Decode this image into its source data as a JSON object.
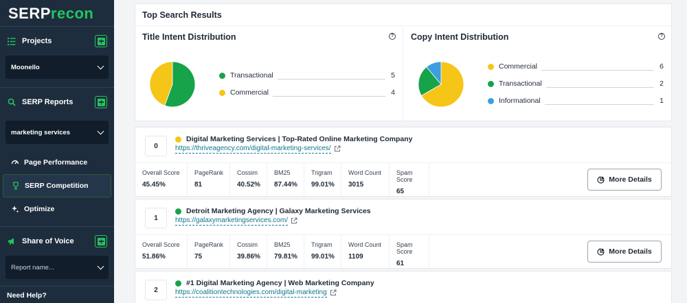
{
  "brand": {
    "serp": "SERP",
    "recon": "recon"
  },
  "sidebar": {
    "projects_label": "Projects",
    "project_selected": "Moonello",
    "serp_reports_label": "SERP Reports",
    "report_selected": "marketing services",
    "nav": [
      {
        "label": "Page Performance",
        "icon": "gauge-icon"
      },
      {
        "label": "SERP Competition",
        "icon": "trophy-icon"
      },
      {
        "label": "Optimize",
        "icon": "sparkle-icon"
      }
    ],
    "share_label": "Share of Voice",
    "share_placeholder": "Report name...",
    "help_label": "Need Help?"
  },
  "main": {
    "section_title": "Top Search Results",
    "title_intent": {
      "heading": "Title Intent Distribution",
      "items": [
        {
          "label": "Transactional",
          "value": 5,
          "color": "#16a34a"
        },
        {
          "label": "Commercial",
          "value": 4,
          "color": "#f5c518"
        }
      ]
    },
    "copy_intent": {
      "heading": "Copy Intent Distribution",
      "items": [
        {
          "label": "Commercial",
          "value": 6,
          "color": "#f5c518"
        },
        {
          "label": "Transactional",
          "value": 2,
          "color": "#16a34a"
        },
        {
          "label": "Informational",
          "value": 1,
          "color": "#3b9ede"
        }
      ]
    },
    "metric_labels": [
      "Overall Score",
      "PageRank",
      "Cossim",
      "BM25",
      "Trigram",
      "Word Count",
      "Spam Score"
    ],
    "more_details_label": "More Details",
    "results": [
      {
        "rank": "0",
        "dot_color": "#f5c518",
        "title": "Digital Marketing Services | Top-Rated Online Marketing Company",
        "url": "https://thriveagency.com/digital-marketing-services/",
        "metrics": [
          "45.45%",
          "81",
          "40.52%",
          "87.44%",
          "99.01%",
          "3015",
          "65"
        ]
      },
      {
        "rank": "1",
        "dot_color": "#16a34a",
        "title": "Detroit Marketing Agency | Galaxy Marketing Services",
        "url": "https://galaxymarketingservices.com/",
        "metrics": [
          "51.86%",
          "75",
          "39.86%",
          "79.81%",
          "99.01%",
          "1109",
          "61"
        ]
      },
      {
        "rank": "2",
        "dot_color": "#16a34a",
        "title": "#1 Digital Marketing Agency | Web Marketing Company",
        "url": "https://coalitiontechnologies.com/digital-marketing"
      }
    ]
  }
}
